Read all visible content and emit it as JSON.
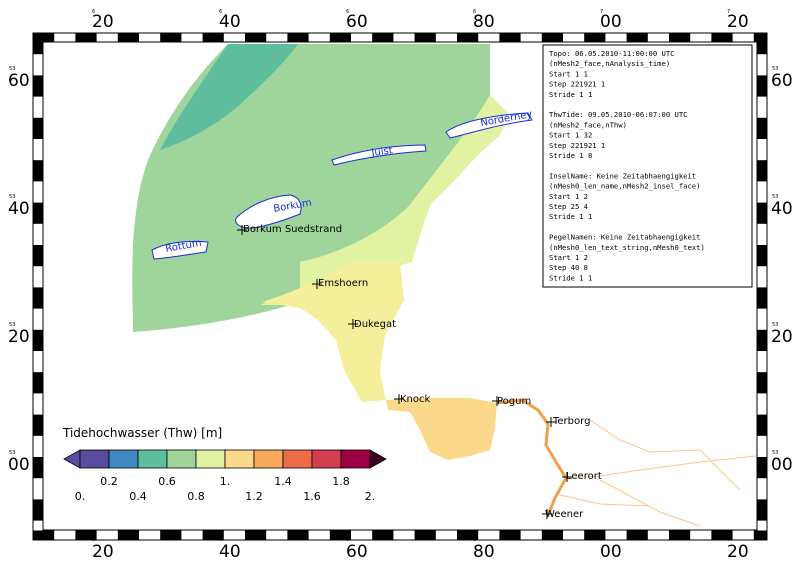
{
  "axes": {
    "x_ticks": [
      {
        "deg": "6",
        "val": "20"
      },
      {
        "deg": "6",
        "val": "40"
      },
      {
        "deg": "6",
        "val": "60"
      },
      {
        "deg": "6",
        "val": "80"
      },
      {
        "deg": "7",
        "val": "00"
      },
      {
        "deg": "7",
        "val": "20"
      }
    ],
    "y_ticks": [
      {
        "deg": "53",
        "val": "60"
      },
      {
        "deg": "53",
        "val": "40"
      },
      {
        "deg": "53",
        "val": "20"
      },
      {
        "deg": "53",
        "val": "00"
      }
    ]
  },
  "map": {
    "colors": {
      "sea_deep": "#5dbd9c",
      "sea_mid": "#9fd59a",
      "estuary_mid": "#e2f2a3",
      "estuary_inner": "#f4ef9a",
      "dollart": "#fbd98a",
      "river": "#f0a04b",
      "land_lines": "#f6c98a",
      "island_outline": "#1a2bd6"
    },
    "islands": [
      {
        "name": "Norderney"
      },
      {
        "name": "Juist"
      },
      {
        "name": "Borkum"
      },
      {
        "name": "Rottum"
      }
    ],
    "gauges": [
      {
        "name": "Borkum Suedstrand"
      },
      {
        "name": "Emshoern"
      },
      {
        "name": "Dukegat"
      },
      {
        "name": "Knock"
      },
      {
        "name": "Pogum"
      },
      {
        "name": "Terborg"
      },
      {
        "name": "Leerort"
      },
      {
        "name": "Weener"
      }
    ]
  },
  "info_box": {
    "lines": [
      "Topo: 06.05.2010-11:00:00 UTC",
      "(nMesh2_face,nAnalysis_time)",
      "Start       1        1",
      "Step   221921        1",
      "Stride      1        1",
      "",
      "ThwTide: 09.05.2010-06:07:00 UTC",
      "(nMesh2_face,nThw)",
      "Start       1       32",
      "Step   221921        1",
      "Stride      1        8",
      "",
      "InselName: Keine Zeitabhaengigkeit",
      "(nMesh0_len_name,nMesh2_insel_face)",
      "Start   1   2",
      "Step   25   4",
      "Stride  1   1",
      "",
      "PegelNamen: Keine Zeitabhaengigkeit",
      "(nMesh0_len_text_string,nMesh0_text)",
      "Start   1   2",
      "Step   40   8",
      "Stride  1   1"
    ]
  },
  "legend": {
    "title": "Tidehochwasser (Thw) [m]",
    "colors": [
      "#5a4b9e",
      "#3f87c0",
      "#5dbd9c",
      "#9fd59a",
      "#e2f2a3",
      "#fbd98a",
      "#f8a95e",
      "#f06b4a",
      "#d53e4f",
      "#9e0142"
    ],
    "labels_top": [
      "0.2",
      "0.6",
      "1.",
      "1.4",
      "1.8"
    ],
    "labels_bottom": [
      "0.",
      "0.4",
      "0.8",
      "1.2",
      "1.6",
      "2."
    ]
  }
}
